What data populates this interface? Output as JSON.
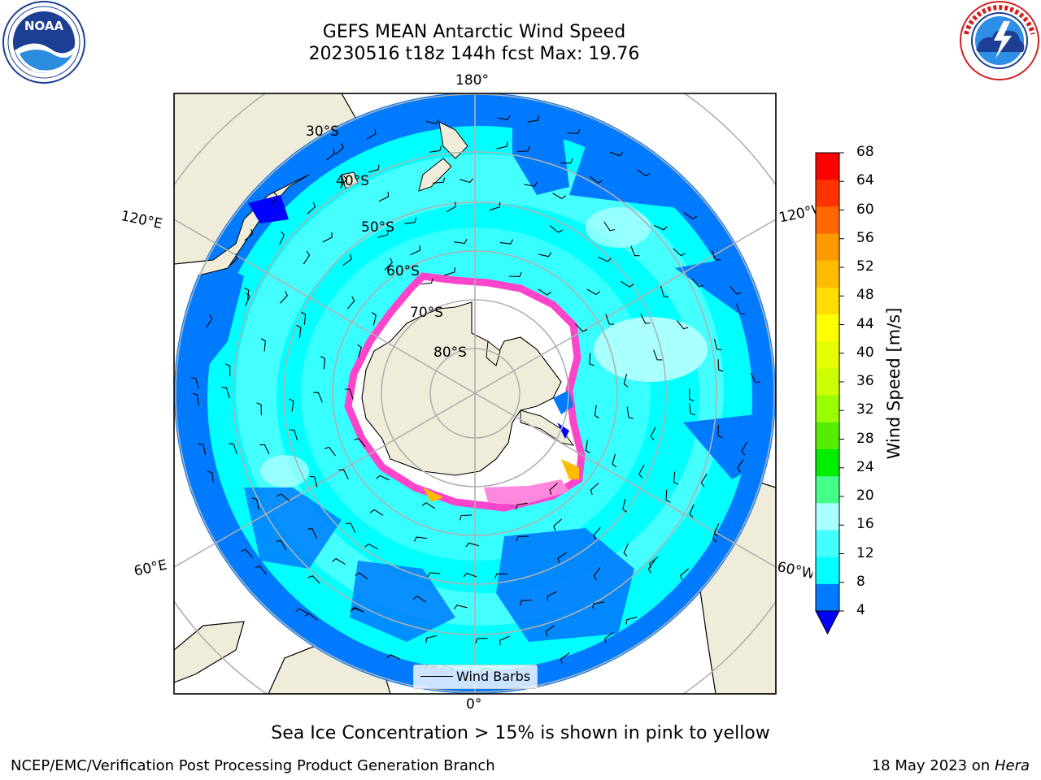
{
  "title": {
    "line1": "GEFS MEAN Antarctic Wind Speed",
    "line2": "20230516 t18z 144h fcst   Max: 19.76"
  },
  "logos": {
    "left": {
      "icon": "noaa-logo",
      "text": "NOAA",
      "ring_text": "NATIONAL OCEANIC AND ATMOSPHERIC ADMINISTRATION · U.S. DEPARTMENT OF COMMERCE"
    },
    "right": {
      "icon": "nws-logo",
      "ring_text": "NATIONAL WEATHER SERVICE"
    }
  },
  "map": {
    "projection": "south-polar-stereographic",
    "lon_labels": {
      "top": "180°",
      "bottom": "0°",
      "left_upper": "120°E",
      "left_lower": "60°E",
      "right_upper": "120°W",
      "right_lower": "60°W"
    },
    "lat_labels": [
      "30°S",
      "40°S",
      "50°S",
      "60°S",
      "70°S",
      "80°S"
    ],
    "colors": {
      "land": "#efedd9",
      "ocean_high": "#00ffff",
      "ocean_mid": "#45ffff",
      "ocean_low": "#007bff",
      "ice_edge": "#ff44cc",
      "ice": "#ffffff",
      "gridline": "#b0b0b0"
    }
  },
  "colorbar": {
    "label": "Wind Speed [m/s]",
    "ticks": [
      "68",
      "64",
      "60",
      "56",
      "52",
      "48",
      "44",
      "40",
      "36",
      "32",
      "28",
      "24",
      "20",
      "16",
      "12",
      "8",
      "4"
    ],
    "colors": [
      "#ff0000",
      "#ff3300",
      "#ff6600",
      "#ff9900",
      "#ffbb00",
      "#ffdd00",
      "#ffff00",
      "#e6ff00",
      "#ccff00",
      "#99ff00",
      "#55ee00",
      "#00ee00",
      "#44ff88",
      "#aaffff",
      "#44ffff",
      "#00ffff",
      "#007bff"
    ],
    "extend_color": "#0000ff"
  },
  "legend": {
    "label": "Wind Barbs"
  },
  "caption": "Sea Ice Concentration > 15% is shown in pink to yellow",
  "footer": {
    "left": "NCEP/EMC/Verification Post Processing Product Generation Branch",
    "right_date": "18 May 2023 on ",
    "right_host": "Hera"
  }
}
